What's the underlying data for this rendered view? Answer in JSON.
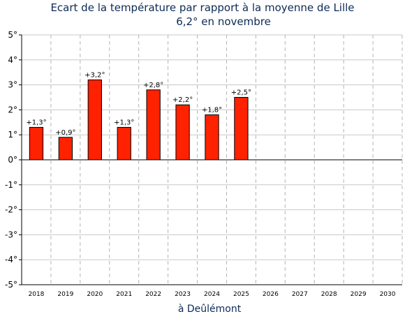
{
  "chart_data": {
    "type": "bar",
    "title": "Ecart de la température par rapport à la moyenne de Lille",
    "subtitle": "6,2° en novembre",
    "xlabel": "à Deûlémont",
    "ylabel": "",
    "ylim": [
      -5,
      5
    ],
    "yticks": [
      "5°",
      "4°",
      "3°",
      "2°",
      "1°",
      "0°",
      "-1°",
      "-2°",
      "-3°",
      "-4°",
      "-5°"
    ],
    "ytick_values": [
      5,
      4,
      3,
      2,
      1,
      0,
      -1,
      -2,
      -3,
      -4,
      -5
    ],
    "categories": [
      "2018",
      "2019",
      "2020",
      "2021",
      "2022",
      "2023",
      "2024",
      "2025",
      "2026",
      "2027",
      "2028",
      "2029",
      "2030"
    ],
    "values": [
      1.3,
      0.9,
      3.2,
      1.3,
      2.8,
      2.2,
      1.8,
      2.5,
      null,
      null,
      null,
      null,
      null
    ],
    "data_labels": [
      "+1,3°",
      "+0,9°",
      "+3,2°",
      "+1,3°",
      "+2,8°",
      "+2,2°",
      "+1,8°",
      "+2,5°",
      "",
      "",
      "",
      "",
      ""
    ],
    "grid": true,
    "colors": {
      "bar": "#ff2200",
      "bar_edge": "#000000",
      "grid_h": "#c8c8c8",
      "grid_v": "#b4b4b4",
      "text": "#0d2a56"
    }
  }
}
